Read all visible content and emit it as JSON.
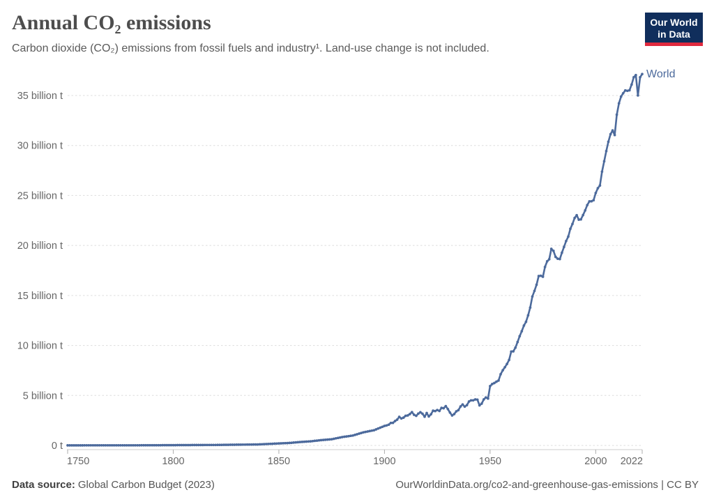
{
  "header": {
    "title": "Annual CO₂ emissions",
    "subtitle": "Carbon dioxide (CO₂) emissions from fossil fuels and industry¹. Land-use change is not included."
  },
  "logo": {
    "line1": "Our World",
    "line2": "in Data",
    "bg_color": "#102E5C",
    "accent_color": "#E0293E"
  },
  "footer": {
    "source_label": "Data source:",
    "source_value": "Global Carbon Budget (2023)",
    "link": "OurWorldinData.org/co2-and-greenhouse-gas-emissions | CC BY"
  },
  "colors": {
    "line": "#4C6A9C",
    "series_label": "#4C6A9C",
    "grid": "#dddddd",
    "axis": "#cccccc",
    "tick": "#adadad",
    "tick_text": "#666666"
  },
  "chart_data": {
    "type": "line",
    "title": "Annual CO₂ emissions",
    "unit": "billion t",
    "xlabel": "",
    "ylabel": "",
    "xlim": [
      1750,
      2022
    ],
    "ylim": [
      0,
      37.3
    ],
    "grid": "horizontal-dashed",
    "legend_position": "series-end-label",
    "yticks": [
      {
        "value": 0,
        "label": "0 t"
      },
      {
        "value": 5,
        "label": "5 billion t"
      },
      {
        "value": 10,
        "label": "10 billion t"
      },
      {
        "value": 15,
        "label": "15 billion t"
      },
      {
        "value": 20,
        "label": "20 billion t"
      },
      {
        "value": 25,
        "label": "25 billion t"
      },
      {
        "value": 30,
        "label": "30 billion t"
      },
      {
        "value": 35,
        "label": "35 billion t"
      }
    ],
    "xticks": [
      {
        "year": 1750,
        "label": "1750",
        "align": "start"
      },
      {
        "year": 1800,
        "label": "1800"
      },
      {
        "year": 1850,
        "label": "1850"
      },
      {
        "year": 1900,
        "label": "1900"
      },
      {
        "year": 1950,
        "label": "1950"
      },
      {
        "year": 2000,
        "label": "2000"
      },
      {
        "year": 2022,
        "label": "2022",
        "align": "end"
      }
    ],
    "series": [
      {
        "name": "World",
        "color": "#4C6A9C",
        "points": [
          [
            1750,
            0.009
          ],
          [
            1760,
            0.011
          ],
          [
            1770,
            0.013
          ],
          [
            1780,
            0.016
          ],
          [
            1790,
            0.019
          ],
          [
            1800,
            0.03
          ],
          [
            1810,
            0.04
          ],
          [
            1820,
            0.052
          ],
          [
            1830,
            0.075
          ],
          [
            1840,
            0.1
          ],
          [
            1850,
            0.2
          ],
          [
            1855,
            0.25
          ],
          [
            1860,
            0.34
          ],
          [
            1865,
            0.41
          ],
          [
            1870,
            0.53
          ],
          [
            1875,
            0.62
          ],
          [
            1880,
            0.84
          ],
          [
            1885,
            0.99
          ],
          [
            1890,
            1.31
          ],
          [
            1895,
            1.52
          ],
          [
            1900,
            1.95
          ],
          [
            1901,
            2.0
          ],
          [
            1902,
            2.08
          ],
          [
            1903,
            2.25
          ],
          [
            1904,
            2.26
          ],
          [
            1905,
            2.44
          ],
          [
            1906,
            2.58
          ],
          [
            1907,
            2.86
          ],
          [
            1908,
            2.7
          ],
          [
            1909,
            2.78
          ],
          [
            1910,
            2.96
          ],
          [
            1911,
            3.0
          ],
          [
            1912,
            3.14
          ],
          [
            1913,
            3.33
          ],
          [
            1914,
            3.07
          ],
          [
            1915,
            2.96
          ],
          [
            1916,
            3.18
          ],
          [
            1917,
            3.32
          ],
          [
            1918,
            3.17
          ],
          [
            1919,
            2.87
          ],
          [
            1920,
            3.24
          ],
          [
            1921,
            2.9
          ],
          [
            1922,
            3.12
          ],
          [
            1923,
            3.48
          ],
          [
            1924,
            3.44
          ],
          [
            1925,
            3.54
          ],
          [
            1926,
            3.45
          ],
          [
            1927,
            3.76
          ],
          [
            1928,
            3.72
          ],
          [
            1929,
            3.93
          ],
          [
            1930,
            3.64
          ],
          [
            1931,
            3.29
          ],
          [
            1932,
            3.0
          ],
          [
            1933,
            3.14
          ],
          [
            1934,
            3.41
          ],
          [
            1935,
            3.53
          ],
          [
            1936,
            3.9
          ],
          [
            1937,
            4.1
          ],
          [
            1938,
            3.88
          ],
          [
            1939,
            4.03
          ],
          [
            1940,
            4.39
          ],
          [
            1941,
            4.51
          ],
          [
            1942,
            4.51
          ],
          [
            1943,
            4.6
          ],
          [
            1944,
            4.58
          ],
          [
            1945,
            4.01
          ],
          [
            1946,
            4.18
          ],
          [
            1947,
            4.6
          ],
          [
            1948,
            4.8
          ],
          [
            1949,
            4.69
          ],
          [
            1950,
            5.93
          ],
          [
            1951,
            6.14
          ],
          [
            1952,
            6.24
          ],
          [
            1953,
            6.38
          ],
          [
            1954,
            6.49
          ],
          [
            1955,
            7.12
          ],
          [
            1956,
            7.52
          ],
          [
            1957,
            7.82
          ],
          [
            1958,
            8.15
          ],
          [
            1959,
            8.55
          ],
          [
            1960,
            9.39
          ],
          [
            1961,
            9.41
          ],
          [
            1962,
            9.78
          ],
          [
            1963,
            10.35
          ],
          [
            1964,
            10.93
          ],
          [
            1965,
            11.43
          ],
          [
            1966,
            11.99
          ],
          [
            1967,
            12.37
          ],
          [
            1968,
            13.01
          ],
          [
            1969,
            13.79
          ],
          [
            1970,
            14.9
          ],
          [
            1971,
            15.46
          ],
          [
            1972,
            16.07
          ],
          [
            1973,
            16.94
          ],
          [
            1974,
            16.97
          ],
          [
            1975,
            16.87
          ],
          [
            1976,
            17.85
          ],
          [
            1977,
            18.41
          ],
          [
            1978,
            18.62
          ],
          [
            1979,
            19.66
          ],
          [
            1980,
            19.46
          ],
          [
            1981,
            18.86
          ],
          [
            1982,
            18.68
          ],
          [
            1983,
            18.64
          ],
          [
            1984,
            19.28
          ],
          [
            1985,
            19.86
          ],
          [
            1986,
            20.44
          ],
          [
            1987,
            20.89
          ],
          [
            1988,
            21.67
          ],
          [
            1989,
            22.15
          ],
          [
            1990,
            22.75
          ],
          [
            1991,
            23.03
          ],
          [
            1992,
            22.58
          ],
          [
            1993,
            22.61
          ],
          [
            1994,
            23.04
          ],
          [
            1995,
            23.5
          ],
          [
            1996,
            24.04
          ],
          [
            1997,
            24.41
          ],
          [
            1998,
            24.42
          ],
          [
            1999,
            24.53
          ],
          [
            2000,
            25.25
          ],
          [
            2001,
            25.73
          ],
          [
            2002,
            26.0
          ],
          [
            2003,
            27.38
          ],
          [
            2004,
            28.42
          ],
          [
            2005,
            29.44
          ],
          [
            2006,
            30.37
          ],
          [
            2007,
            31.13
          ],
          [
            2008,
            31.51
          ],
          [
            2009,
            31.05
          ],
          [
            2010,
            33.08
          ],
          [
            2011,
            34.22
          ],
          [
            2012,
            34.89
          ],
          [
            2013,
            35.22
          ],
          [
            2014,
            35.51
          ],
          [
            2015,
            35.47
          ],
          [
            2016,
            35.52
          ],
          [
            2017,
            36.1
          ],
          [
            2018,
            36.83
          ],
          [
            2019,
            37.04
          ],
          [
            2020,
            35.01
          ],
          [
            2021,
            36.82
          ],
          [
            2022,
            37.15
          ]
        ]
      }
    ]
  }
}
